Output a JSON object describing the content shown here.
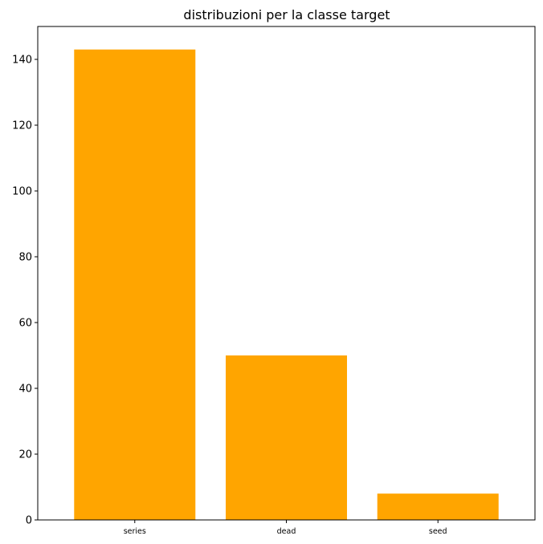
{
  "chart_data": {
    "type": "bar",
    "title": "distribuzioni per la classe target",
    "xlabel": "",
    "ylabel": "",
    "categories": [
      "series",
      "dead",
      "seed"
    ],
    "values": [
      143,
      50,
      8
    ],
    "ylim": [
      0,
      150
    ],
    "yticks": [
      0,
      20,
      40,
      60,
      80,
      100,
      120,
      140
    ],
    "grid": false,
    "legend": "none",
    "bar_color": "#ffa500"
  }
}
